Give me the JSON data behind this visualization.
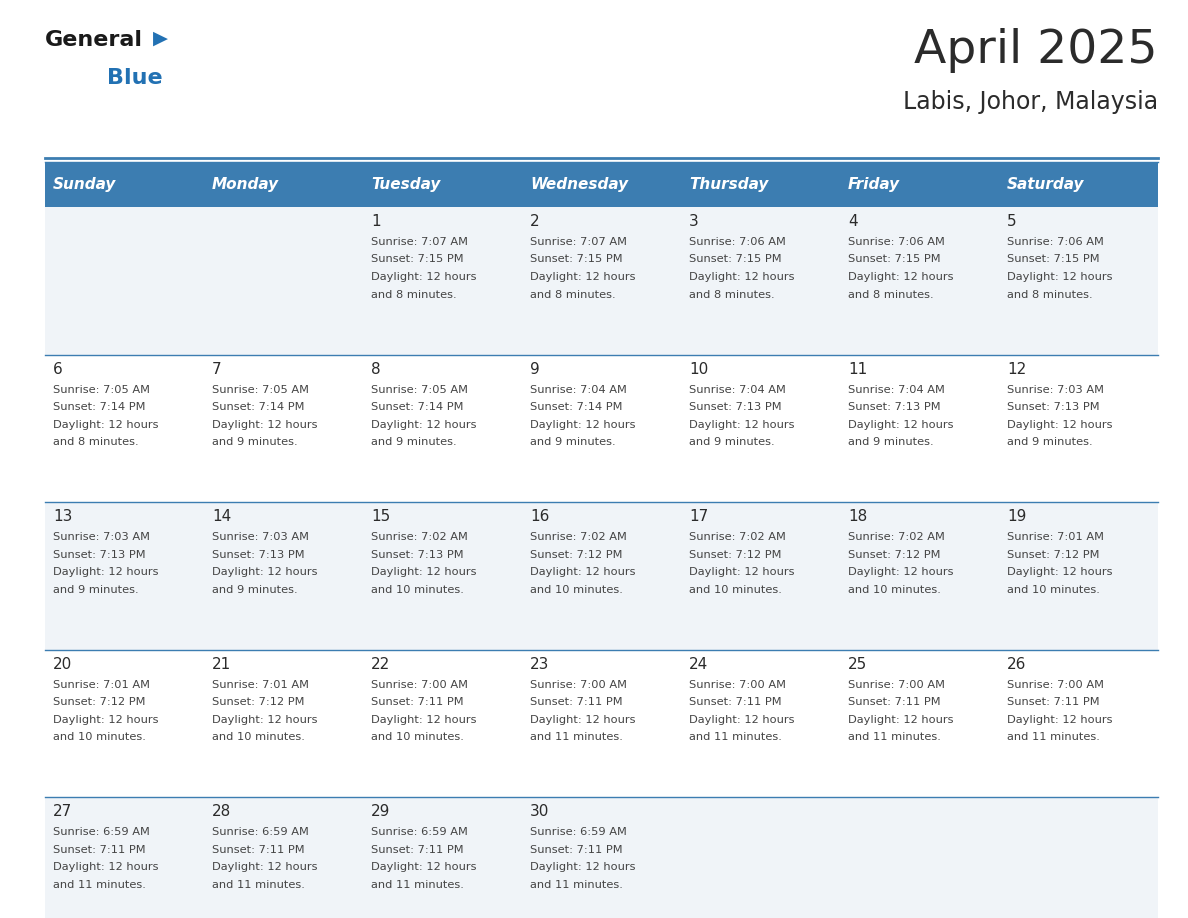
{
  "title": "April 2025",
  "subtitle": "Labis, Johor, Malaysia",
  "days_of_week": [
    "Sunday",
    "Monday",
    "Tuesday",
    "Wednesday",
    "Thursday",
    "Friday",
    "Saturday"
  ],
  "header_bg": "#3C7DB1",
  "header_text": "#FFFFFF",
  "row0_bg": "#F0F4F8",
  "row1_bg": "#FFFFFF",
  "border_color": "#3C7DB1",
  "title_color": "#2B2B2B",
  "day_number_color": "#2B2B2B",
  "cell_text_color": "#444444",
  "logo_black": "#1a1a1a",
  "logo_blue": "#2271B3",
  "calendar_data": [
    [
      null,
      null,
      {
        "day": "1",
        "sunrise": "7:07 AM",
        "sunset": "7:15 PM",
        "daylight": "12 hours",
        "daylight2": "and 8 minutes."
      },
      {
        "day": "2",
        "sunrise": "7:07 AM",
        "sunset": "7:15 PM",
        "daylight": "12 hours",
        "daylight2": "and 8 minutes."
      },
      {
        "day": "3",
        "sunrise": "7:06 AM",
        "sunset": "7:15 PM",
        "daylight": "12 hours",
        "daylight2": "and 8 minutes."
      },
      {
        "day": "4",
        "sunrise": "7:06 AM",
        "sunset": "7:15 PM",
        "daylight": "12 hours",
        "daylight2": "and 8 minutes."
      },
      {
        "day": "5",
        "sunrise": "7:06 AM",
        "sunset": "7:15 PM",
        "daylight": "12 hours",
        "daylight2": "and 8 minutes."
      }
    ],
    [
      {
        "day": "6",
        "sunrise": "7:05 AM",
        "sunset": "7:14 PM",
        "daylight": "12 hours",
        "daylight2": "and 8 minutes."
      },
      {
        "day": "7",
        "sunrise": "7:05 AM",
        "sunset": "7:14 PM",
        "daylight": "12 hours",
        "daylight2": "and 9 minutes."
      },
      {
        "day": "8",
        "sunrise": "7:05 AM",
        "sunset": "7:14 PM",
        "daylight": "12 hours",
        "daylight2": "and 9 minutes."
      },
      {
        "day": "9",
        "sunrise": "7:04 AM",
        "sunset": "7:14 PM",
        "daylight": "12 hours",
        "daylight2": "and 9 minutes."
      },
      {
        "day": "10",
        "sunrise": "7:04 AM",
        "sunset": "7:13 PM",
        "daylight": "12 hours",
        "daylight2": "and 9 minutes."
      },
      {
        "day": "11",
        "sunrise": "7:04 AM",
        "sunset": "7:13 PM",
        "daylight": "12 hours",
        "daylight2": "and 9 minutes."
      },
      {
        "day": "12",
        "sunrise": "7:03 AM",
        "sunset": "7:13 PM",
        "daylight": "12 hours",
        "daylight2": "and 9 minutes."
      }
    ],
    [
      {
        "day": "13",
        "sunrise": "7:03 AM",
        "sunset": "7:13 PM",
        "daylight": "12 hours",
        "daylight2": "and 9 minutes."
      },
      {
        "day": "14",
        "sunrise": "7:03 AM",
        "sunset": "7:13 PM",
        "daylight": "12 hours",
        "daylight2": "and 9 minutes."
      },
      {
        "day": "15",
        "sunrise": "7:02 AM",
        "sunset": "7:13 PM",
        "daylight": "12 hours",
        "daylight2": "and 10 minutes."
      },
      {
        "day": "16",
        "sunrise": "7:02 AM",
        "sunset": "7:12 PM",
        "daylight": "12 hours",
        "daylight2": "and 10 minutes."
      },
      {
        "day": "17",
        "sunrise": "7:02 AM",
        "sunset": "7:12 PM",
        "daylight": "12 hours",
        "daylight2": "and 10 minutes."
      },
      {
        "day": "18",
        "sunrise": "7:02 AM",
        "sunset": "7:12 PM",
        "daylight": "12 hours",
        "daylight2": "and 10 minutes."
      },
      {
        "day": "19",
        "sunrise": "7:01 AM",
        "sunset": "7:12 PM",
        "daylight": "12 hours",
        "daylight2": "and 10 minutes."
      }
    ],
    [
      {
        "day": "20",
        "sunrise": "7:01 AM",
        "sunset": "7:12 PM",
        "daylight": "12 hours",
        "daylight2": "and 10 minutes."
      },
      {
        "day": "21",
        "sunrise": "7:01 AM",
        "sunset": "7:12 PM",
        "daylight": "12 hours",
        "daylight2": "and 10 minutes."
      },
      {
        "day": "22",
        "sunrise": "7:00 AM",
        "sunset": "7:11 PM",
        "daylight": "12 hours",
        "daylight2": "and 10 minutes."
      },
      {
        "day": "23",
        "sunrise": "7:00 AM",
        "sunset": "7:11 PM",
        "daylight": "12 hours",
        "daylight2": "and 11 minutes."
      },
      {
        "day": "24",
        "sunrise": "7:00 AM",
        "sunset": "7:11 PM",
        "daylight": "12 hours",
        "daylight2": "and 11 minutes."
      },
      {
        "day": "25",
        "sunrise": "7:00 AM",
        "sunset": "7:11 PM",
        "daylight": "12 hours",
        "daylight2": "and 11 minutes."
      },
      {
        "day": "26",
        "sunrise": "7:00 AM",
        "sunset": "7:11 PM",
        "daylight": "12 hours",
        "daylight2": "and 11 minutes."
      }
    ],
    [
      {
        "day": "27",
        "sunrise": "6:59 AM",
        "sunset": "7:11 PM",
        "daylight": "12 hours",
        "daylight2": "and 11 minutes."
      },
      {
        "day": "28",
        "sunrise": "6:59 AM",
        "sunset": "7:11 PM",
        "daylight": "12 hours",
        "daylight2": "and 11 minutes."
      },
      {
        "day": "29",
        "sunrise": "6:59 AM",
        "sunset": "7:11 PM",
        "daylight": "12 hours",
        "daylight2": "and 11 minutes."
      },
      {
        "day": "30",
        "sunrise": "6:59 AM",
        "sunset": "7:11 PM",
        "daylight": "12 hours",
        "daylight2": "and 11 minutes."
      },
      null,
      null,
      null
    ]
  ]
}
